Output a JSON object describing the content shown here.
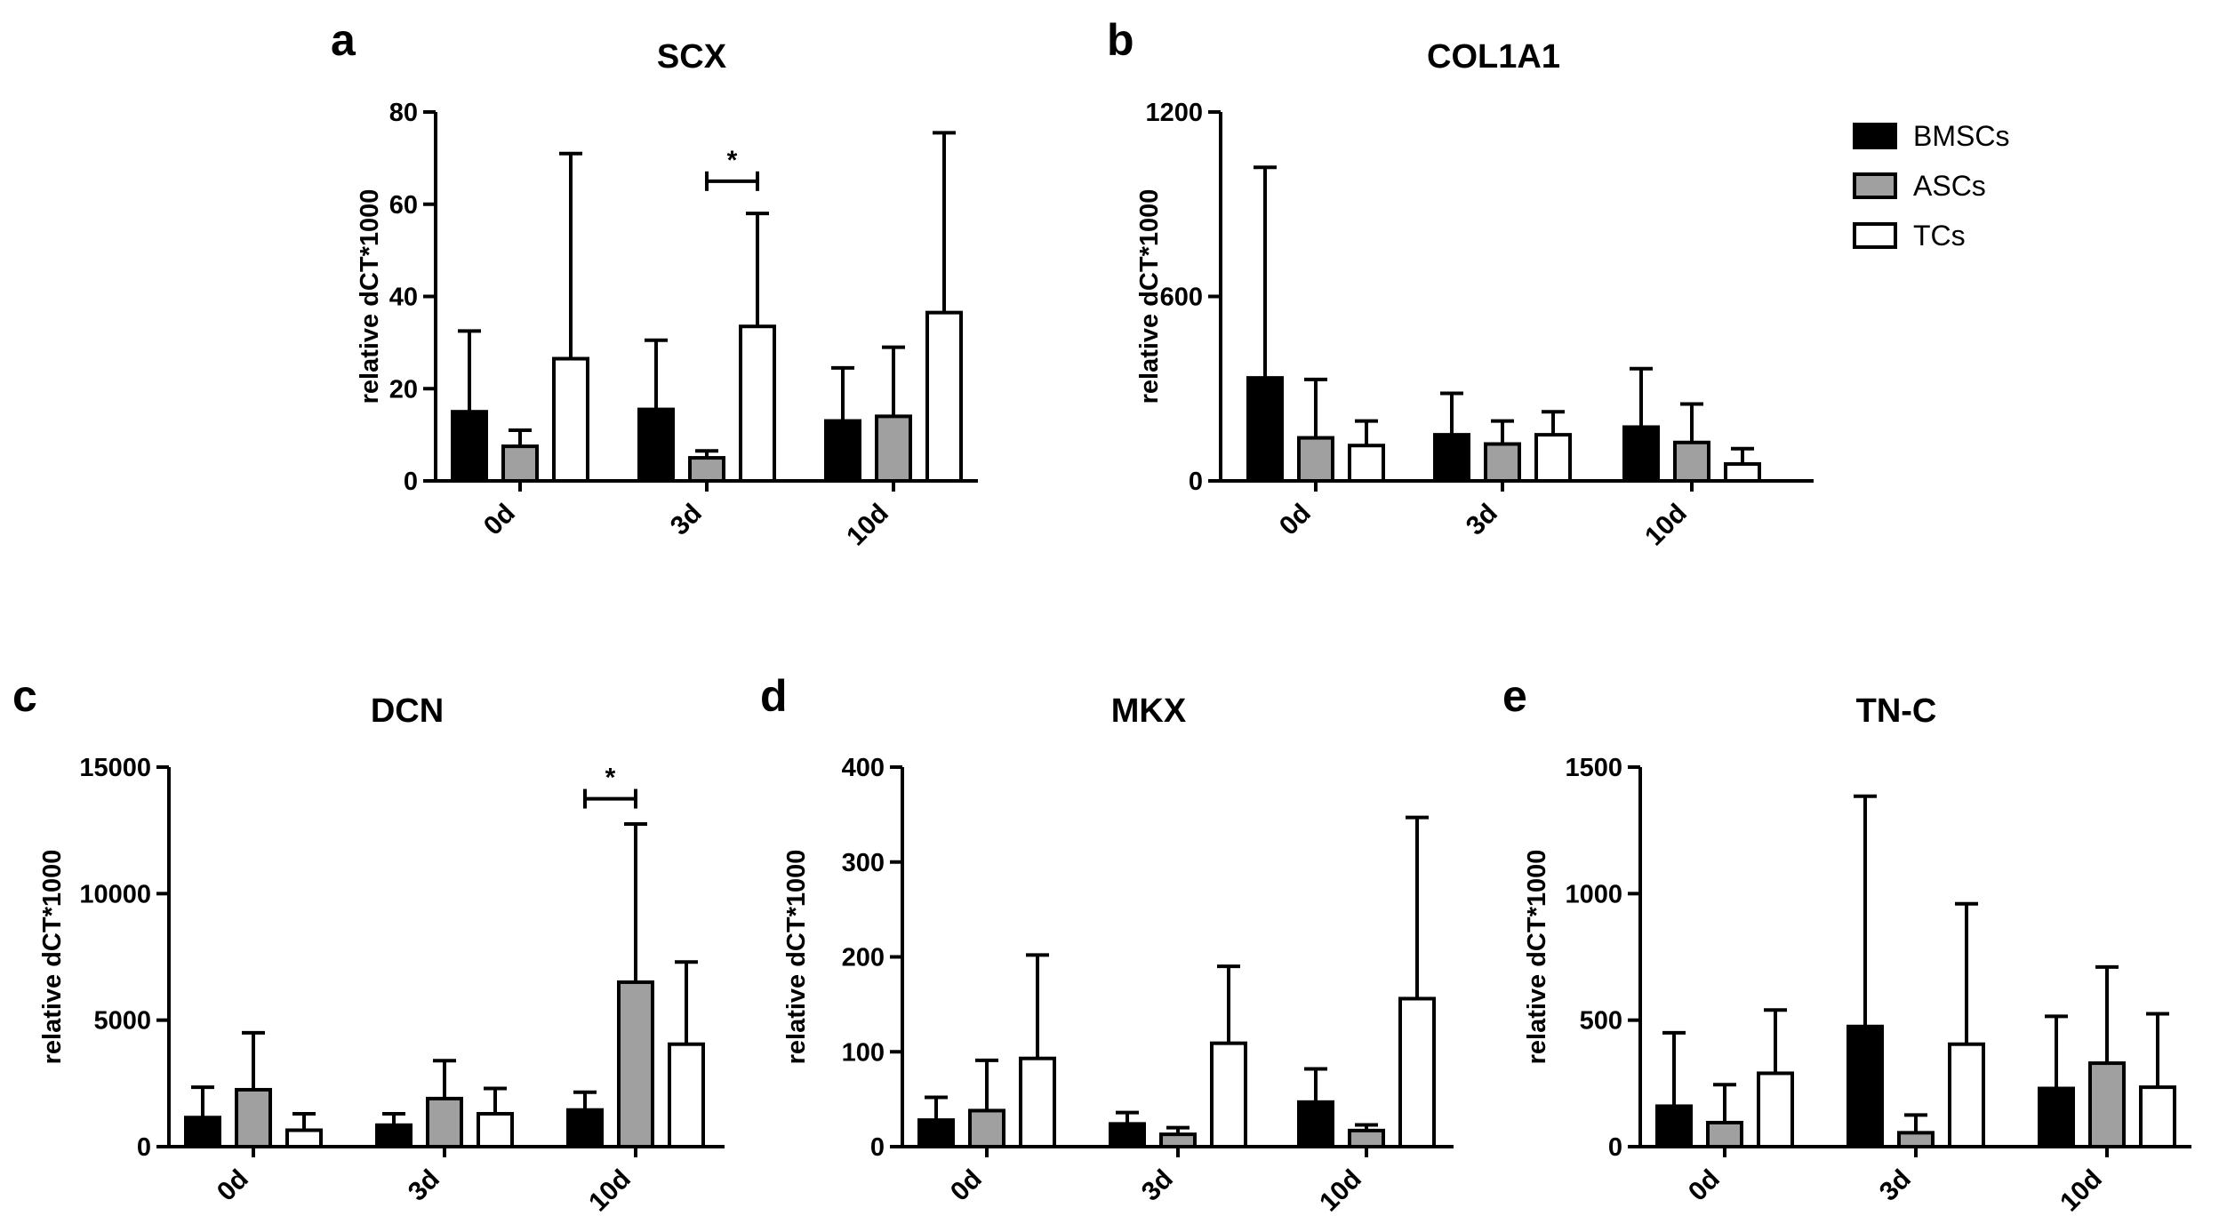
{
  "legend": {
    "entries": [
      {
        "label": "BMSCs",
        "color": "#000000"
      },
      {
        "label": "ASCs",
        "color": "#a0a0a0"
      },
      {
        "label": "TCs",
        "color": "#ffffff"
      }
    ]
  },
  "chart_data": [
    {
      "panel": "a",
      "type": "bar",
      "title": "SCX",
      "ylabel": "relative dCT*1000",
      "xlabel": "",
      "categories": [
        "0d",
        "3d",
        "10d"
      ],
      "ylim": [
        0,
        80
      ],
      "yticks": [
        0,
        20,
        40,
        60,
        80
      ],
      "series": [
        {
          "name": "BMSCs",
          "values": [
            15,
            15.5,
            13
          ],
          "errors": [
            17.5,
            15,
            11.5
          ]
        },
        {
          "name": "ASCs",
          "values": [
            7.5,
            5,
            14
          ],
          "errors": [
            3.5,
            1.5,
            15
          ]
        },
        {
          "name": "TCs",
          "values": [
            26.5,
            33.5,
            36.5
          ],
          "errors": [
            44.5,
            24.5,
            39
          ]
        }
      ],
      "significance": [
        {
          "category_index": 1,
          "from_series": 1,
          "to_series": 2,
          "y": 65,
          "label": "*"
        }
      ]
    },
    {
      "panel": "b",
      "type": "bar",
      "title": "COL1A1",
      "ylabel": "relative dCT*1000",
      "xlabel": "",
      "categories": [
        "0d",
        "3d",
        "10d"
      ],
      "ylim": [
        0,
        1200
      ],
      "yticks": [
        0,
        600,
        1200
      ],
      "series": [
        {
          "name": "BMSCs",
          "values": [
            335,
            150,
            175
          ],
          "errors": [
            685,
            135,
            190
          ]
        },
        {
          "name": "ASCs",
          "values": [
            140,
            120,
            125
          ],
          "errors": [
            190,
            75,
            125
          ]
        },
        {
          "name": "TCs",
          "values": [
            115,
            150,
            55
          ],
          "errors": [
            80,
            75,
            50
          ]
        }
      ],
      "significance": []
    },
    {
      "panel": "c",
      "type": "bar",
      "title": "DCN",
      "ylabel": "relative dCT*1000",
      "xlabel": "",
      "categories": [
        "0d",
        "3d",
        "10d"
      ],
      "ylim": [
        0,
        15000
      ],
      "yticks": [
        0,
        5000,
        10000,
        15000
      ],
      "series": [
        {
          "name": "BMSCs",
          "values": [
            1150,
            850,
            1450
          ],
          "errors": [
            1200,
            450,
            700
          ]
        },
        {
          "name": "ASCs",
          "values": [
            2250,
            1900,
            6500
          ],
          "errors": [
            2250,
            1500,
            6250
          ]
        },
        {
          "name": "TCs",
          "values": [
            650,
            1300,
            4050
          ],
          "errors": [
            650,
            1000,
            3250
          ]
        }
      ],
      "significance": [
        {
          "category_index": 2,
          "from_series": 0,
          "to_series": 1,
          "y": 13750,
          "label": "*"
        }
      ]
    },
    {
      "panel": "d",
      "type": "bar",
      "title": "MKX",
      "ylabel": "relative dCT*1000",
      "xlabel": "",
      "categories": [
        "0d",
        "3d",
        "10d"
      ],
      "ylim": [
        0,
        400
      ],
      "yticks": [
        0,
        100,
        200,
        300,
        400
      ],
      "series": [
        {
          "name": "BMSCs",
          "values": [
            28,
            24,
            47
          ],
          "errors": [
            24,
            12,
            35
          ]
        },
        {
          "name": "ASCs",
          "values": [
            38,
            13,
            17
          ],
          "errors": [
            53,
            7,
            6
          ]
        },
        {
          "name": "TCs",
          "values": [
            93,
            109,
            156
          ],
          "errors": [
            109,
            81,
            191
          ]
        }
      ],
      "significance": []
    },
    {
      "panel": "e",
      "type": "bar",
      "title": "TN-C",
      "ylabel": "relative dCT*1000",
      "xlabel": "",
      "categories": [
        "0d",
        "3d",
        "10d"
      ],
      "ylim": [
        0,
        1500
      ],
      "yticks": [
        0,
        500,
        1000,
        1500
      ],
      "series": [
        {
          "name": "BMSCs",
          "values": [
            160,
            475,
            230
          ],
          "errors": [
            290,
            910,
            285
          ]
        },
        {
          "name": "ASCs",
          "values": [
            95,
            55,
            330
          ],
          "errors": [
            150,
            70,
            380
          ]
        },
        {
          "name": "TCs",
          "values": [
            290,
            405,
            235
          ],
          "errors": [
            250,
            555,
            290
          ]
        }
      ],
      "significance": []
    }
  ]
}
